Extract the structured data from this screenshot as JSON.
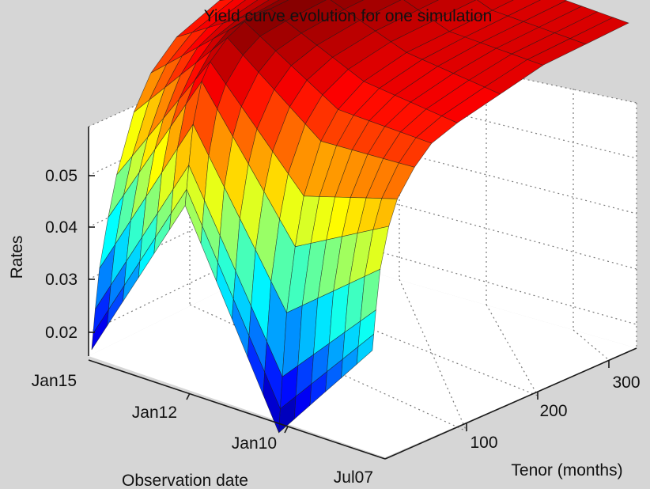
{
  "chart_data": {
    "type": "surface",
    "title": "Yield curve evolution for one simulation",
    "zlabel": "Rates",
    "xlabel": "Tenor (months)",
    "ylabel": "Observation date",
    "z_ticks": [
      "0.02",
      "0.03",
      "0.04",
      "0.05"
    ],
    "tenor_ticks": [
      "100",
      "200",
      "300"
    ],
    "date_ticks": [
      "Jan15",
      "Jan12",
      "Jan10",
      "Jul07"
    ],
    "zlim": [
      0.015,
      0.06
    ],
    "tenor_range": [
      0,
      360
    ],
    "grid": true,
    "colormap": "jet",
    "colors": {
      "background": "#d6d6d6",
      "panel": "#ffffff",
      "grid": "#7f7f7f",
      "axis": "#1a1a1a"
    },
    "surface": {
      "tenors": [
        1,
        3,
        6,
        12,
        24,
        36,
        60,
        84,
        120,
        180,
        240,
        300,
        360
      ],
      "description_rows": [
        {
          "date": "Jul07",
          "rates": [
            0.03,
            0.032,
            0.035,
            0.04,
            0.045,
            0.048,
            0.051,
            0.053,
            0.054,
            0.055,
            0.056,
            0.056,
            0.056
          ]
        },
        {
          "date": "Jan10",
          "rates": [
            0.015,
            0.018,
            0.022,
            0.03,
            0.038,
            0.044,
            0.05,
            0.053,
            0.055,
            0.056,
            0.056,
            0.056,
            0.056
          ]
        },
        {
          "date": "Jan12",
          "rates": [
            0.04,
            0.042,
            0.045,
            0.05,
            0.055,
            0.057,
            0.059,
            0.06,
            0.06,
            0.06,
            0.06,
            0.06,
            0.06
          ]
        },
        {
          "date": "Jan15",
          "rates": [
            0.017,
            0.019,
            0.022,
            0.027,
            0.033,
            0.038,
            0.045,
            0.049,
            0.052,
            0.054,
            0.055,
            0.055,
            0.055
          ]
        }
      ]
    }
  }
}
